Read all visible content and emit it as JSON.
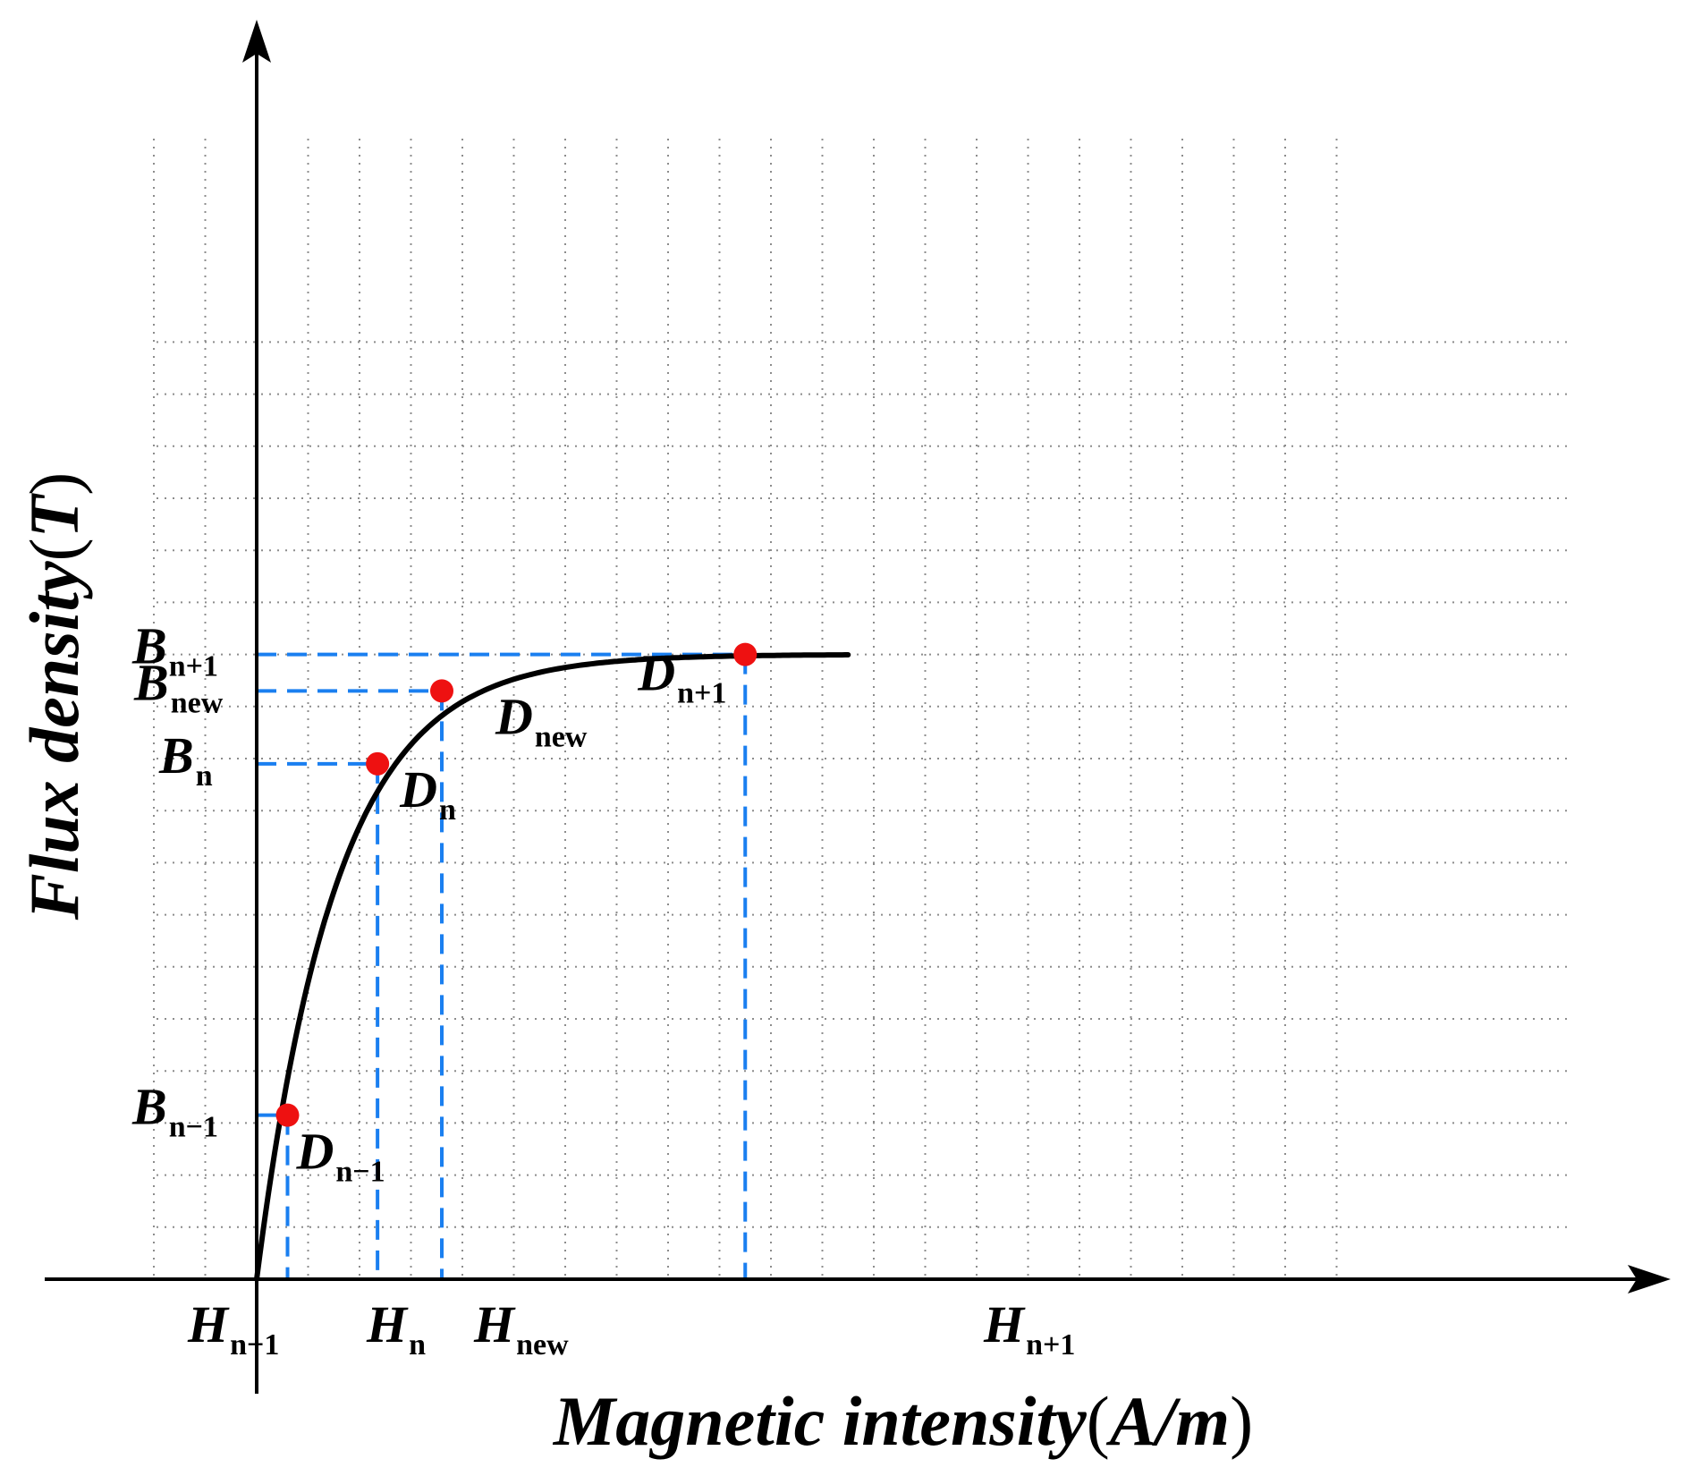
{
  "axes": {
    "x_title": "Magnetic intensity",
    "x_unit": "A/m",
    "y_title": "Flux density",
    "y_unit": "T"
  },
  "colors": {
    "axis": "#000000",
    "curve": "#000000",
    "guide": "#1a7ff0",
    "point": "#ee1111",
    "grid": "#8c8c8c"
  },
  "points": [
    {
      "id": "n-1",
      "x": 0.6,
      "y": 3.15,
      "point_label": {
        "main": "D",
        "sub": "n−1"
      },
      "h_label": {
        "main": "H",
        "sub": "n−1"
      },
      "b_label": {
        "main": "B",
        "sub": "n−1"
      }
    },
    {
      "id": "n",
      "x": 2.35,
      "y": 9.9,
      "point_label": {
        "main": "D",
        "sub": "n"
      },
      "h_label": {
        "main": "H",
        "sub": "n"
      },
      "b_label": {
        "main": "B",
        "sub": "n"
      }
    },
    {
      "id": "new",
      "x": 3.6,
      "y": 11.3,
      "point_label": {
        "main": "D",
        "sub": "new"
      },
      "h_label": {
        "main": "H",
        "sub": "new"
      },
      "b_label": {
        "main": "B",
        "sub": "new"
      }
    },
    {
      "id": "n+1",
      "x": 9.5,
      "y": 12.0,
      "point_label": {
        "main": "D",
        "sub": "n+1"
      },
      "h_label": {
        "main": "H",
        "sub": "n+1"
      },
      "b_label": {
        "main": "B",
        "sub": "n+1"
      }
    }
  ]
}
